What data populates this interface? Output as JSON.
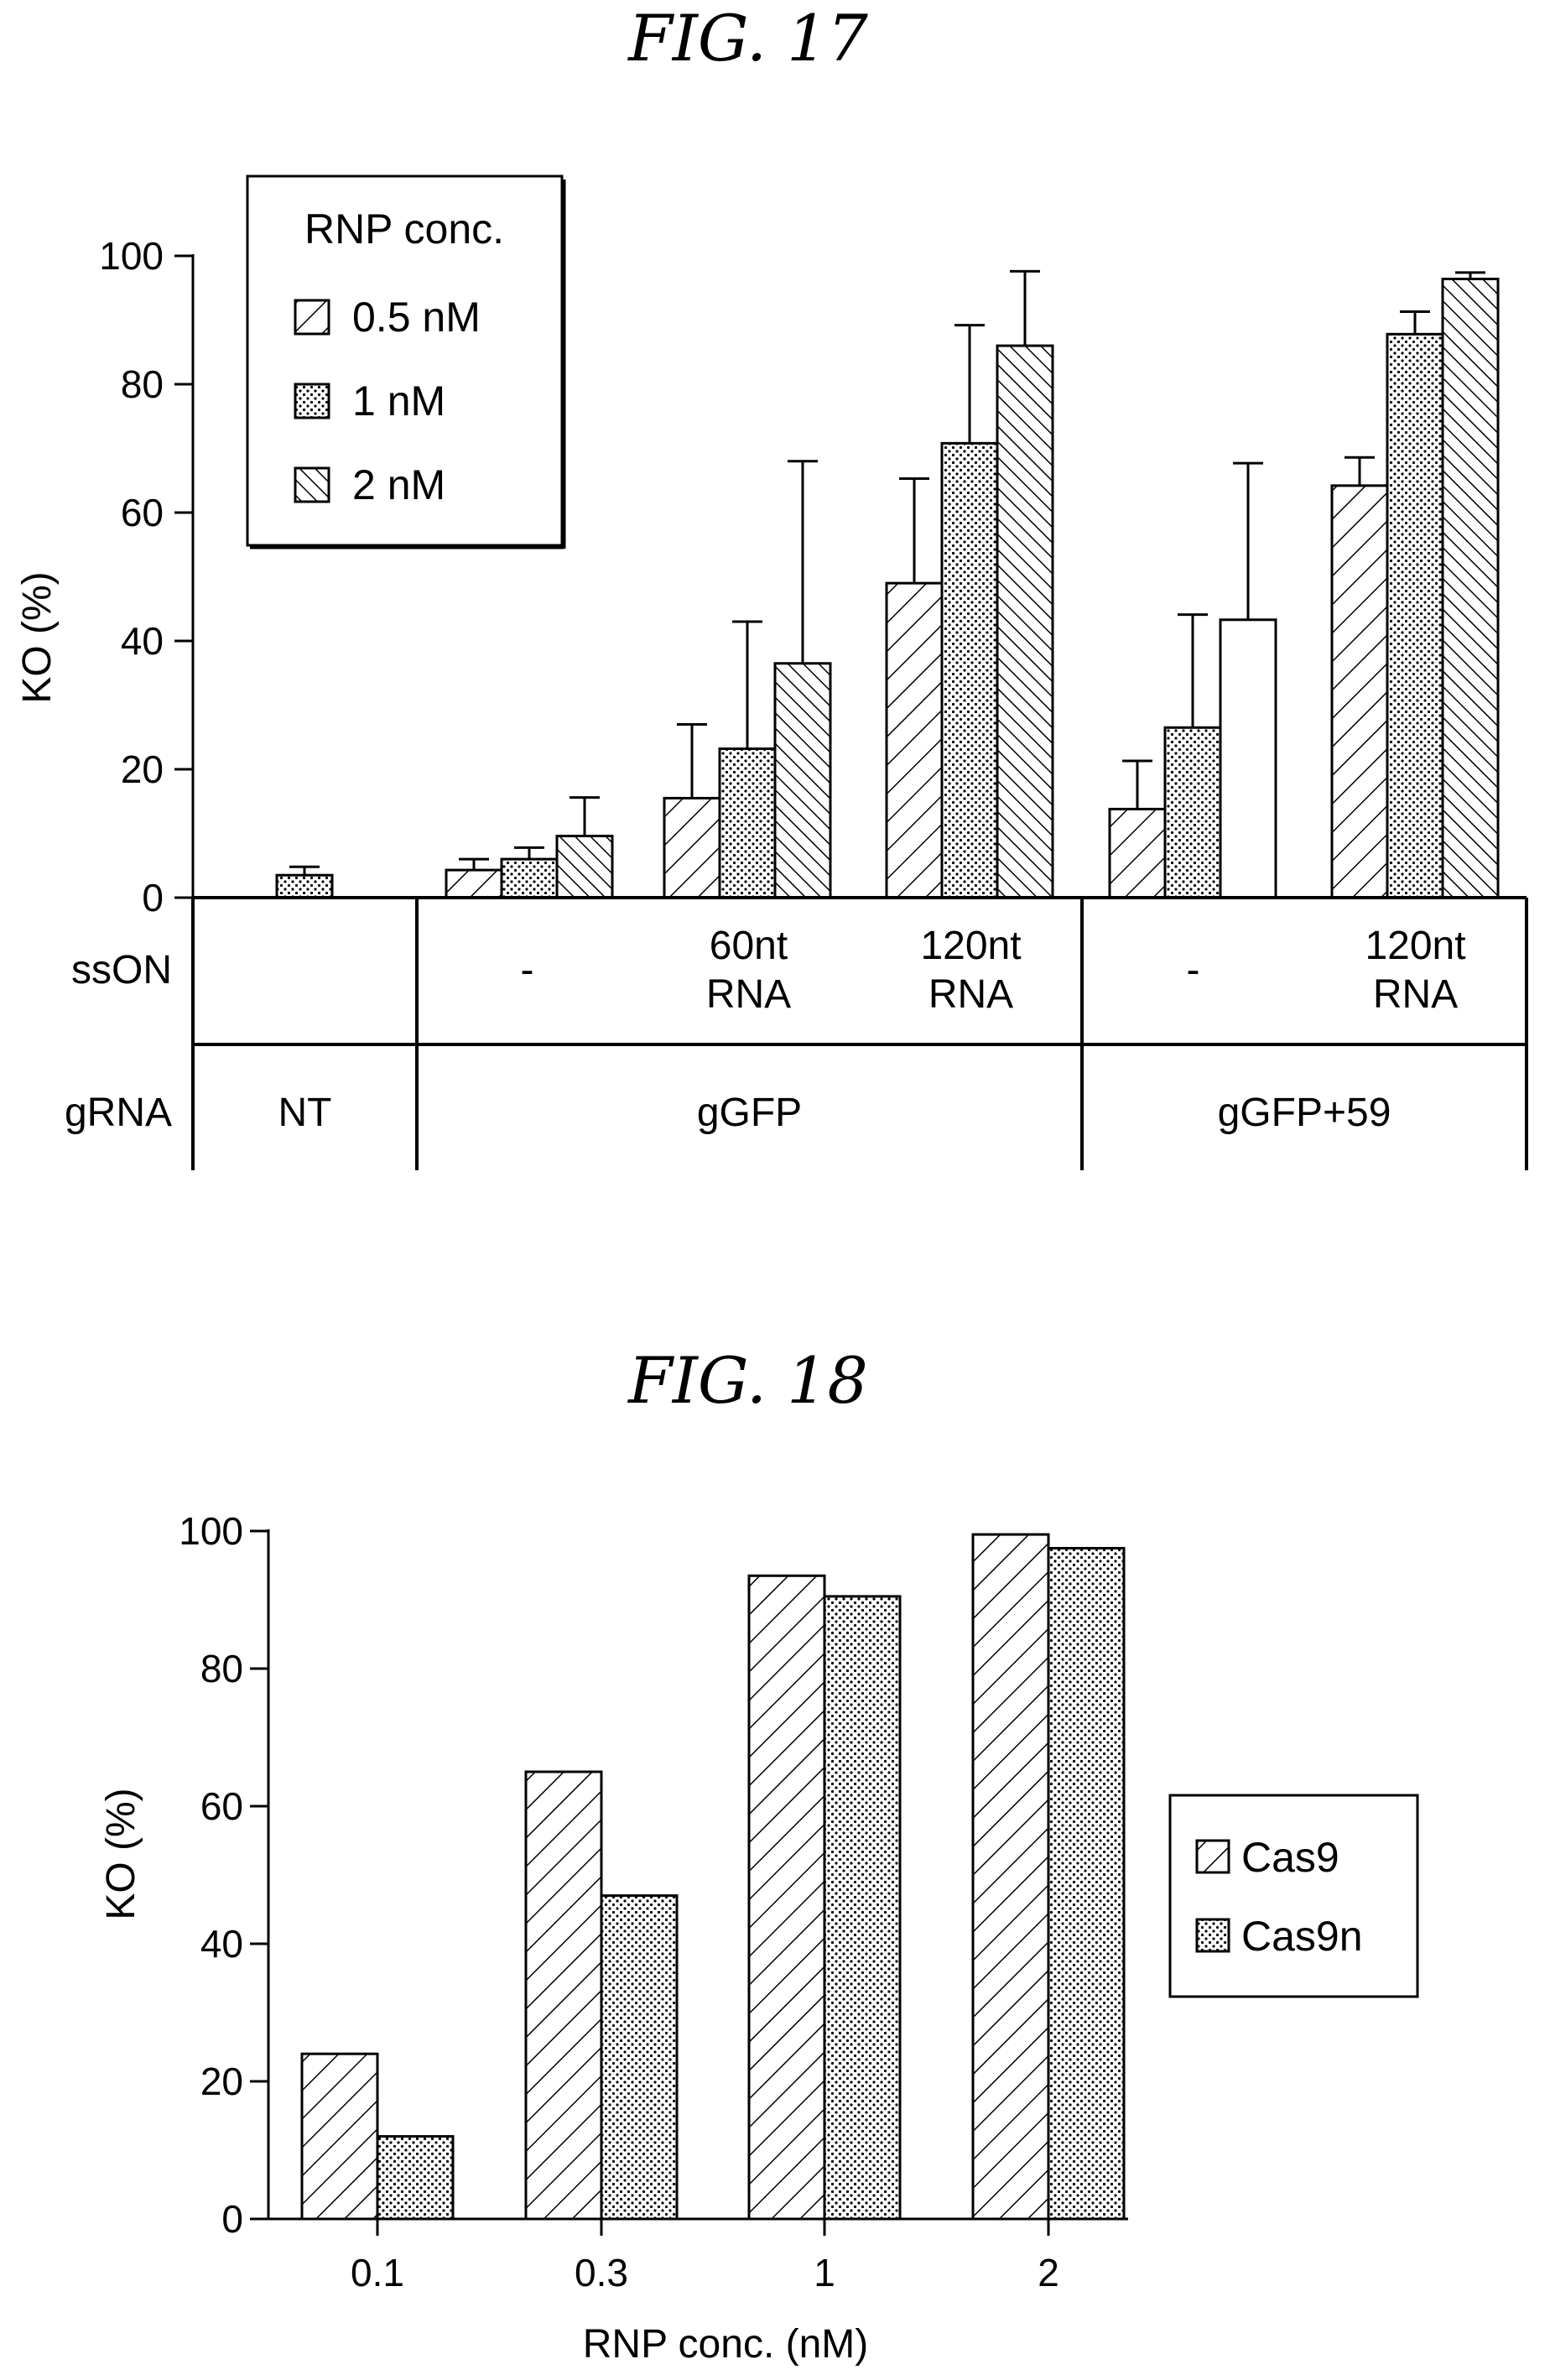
{
  "chart_data": [
    {
      "type": "bar",
      "title": "FIG. 17",
      "ylabel": "KO (%)",
      "ylim": [
        0,
        100
      ],
      "yticks": [
        "0",
        "20",
        "40",
        "60",
        "80",
        "100"
      ],
      "legend": {
        "title": "RNP conc.",
        "placement": "top-left"
      },
      "series": [
        {
          "name": "0.5 nM",
          "pattern": "diagonal-sparse"
        },
        {
          "name": "1 nM",
          "pattern": "dots"
        },
        {
          "name": "2 nM",
          "pattern": "diagonal-dense"
        }
      ],
      "table": {
        "rows": [
          {
            "label": "ssON",
            "cells": [
              {
                "text": "",
                "span": 1
              },
              {
                "text": "-",
                "span": 1
              },
              {
                "text": "60nt\nRNA",
                "span": 1
              },
              {
                "text": "120nt\nRNA",
                "span": 1
              },
              {
                "text": "-",
                "span": 1
              },
              {
                "text": "120nt\nRNA",
                "span": 1
              }
            ]
          },
          {
            "label": "gRNA",
            "cells": [
              {
                "text": "NT",
                "span": 1
              },
              {
                "text": "gGFP",
                "span": 3
              },
              {
                "text": "gGFP+59",
                "span": 2
              }
            ]
          }
        ]
      },
      "groups": [
        {
          "bars": [
            {
              "series": 1,
              "value": 3.5,
              "error": 1.3
            }
          ]
        },
        {
          "bars": [
            {
              "series": 0,
              "value": 4.3,
              "error": 1.7
            },
            {
              "series": 1,
              "value": 6,
              "error": 1.8
            },
            {
              "series": 2,
              "value": 9.6,
              "error": 6
            }
          ]
        },
        {
          "bars": [
            {
              "series": 0,
              "value": 15.5,
              "error": 11.5
            },
            {
              "series": 1,
              "value": 23.2,
              "error": 19.8
            },
            {
              "series": 2,
              "value": 36.5,
              "error": 31.5
            }
          ]
        },
        {
          "bars": [
            {
              "series": 0,
              "value": 49,
              "error": 16.3
            },
            {
              "series": 1,
              "value": 70.8,
              "error": 18.4
            },
            {
              "series": 2,
              "value": 86,
              "error": 11.6
            }
          ]
        },
        {
          "bars": [
            {
              "series": 0,
              "value": 13.8,
              "error": 7.5
            },
            {
              "series": 1,
              "value": 26.5,
              "error": 17.6
            },
            {
              "series": 2,
              "value": 43.3,
              "error": 24.4,
              "pattern": "none"
            }
          ]
        },
        {
          "bars": [
            {
              "series": 0,
              "value": 64.2,
              "error": 4.4
            },
            {
              "series": 1,
              "value": 87.8,
              "error": 3.5
            },
            {
              "series": 2,
              "value": 96.4,
              "error": 1
            }
          ]
        }
      ]
    },
    {
      "type": "bar",
      "title": "FIG. 18",
      "xlabel": "RNP conc. (nM)",
      "ylabel": "KO (%)",
      "ylim": [
        0,
        100
      ],
      "yticks": [
        "0",
        "20",
        "40",
        "60",
        "80",
        "100"
      ],
      "categories": [
        "0.1",
        "0.3",
        "1",
        "2"
      ],
      "legend": {
        "placement": "right"
      },
      "series": [
        {
          "name": "Cas9",
          "pattern": "diagonal-sparse",
          "values": [
            24,
            65,
            93.5,
            99.5
          ]
        },
        {
          "name": "Cas9n",
          "pattern": "dots",
          "values": [
            12,
            47,
            90.5,
            97.5
          ]
        }
      ]
    }
  ]
}
